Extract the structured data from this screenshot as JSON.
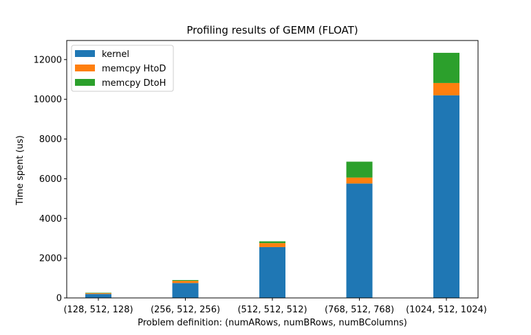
{
  "chart_data": {
    "type": "bar",
    "stacked": true,
    "title": "Profiling results of GEMM (FLOAT)",
    "xlabel": "Problem definition: (numARows, numBRows, numBColumns)",
    "ylabel": "Time spent (us)",
    "categories": [
      "(128, 512, 128)",
      "(256, 512, 256)",
      "(512, 512, 512)",
      "(768, 512, 768)",
      "(1024, 512, 1024)"
    ],
    "series": [
      {
        "name": "kernel",
        "color": "#1f77b4",
        "values": [
          200,
          750,
          2560,
          5760,
          10200
        ]
      },
      {
        "name": "memcpy HtoD",
        "color": "#ff7f0e",
        "values": [
          40,
          110,
          200,
          300,
          620
        ]
      },
      {
        "name": "memcpy DtoH",
        "color": "#2ca02c",
        "values": [
          20,
          40,
          90,
          800,
          1520
        ]
      }
    ],
    "ylim": [
      0,
      12960
    ],
    "yticks": [
      0,
      2000,
      4000,
      6000,
      8000,
      10000,
      12000
    ],
    "grid": false,
    "legend_position": "top-left"
  }
}
